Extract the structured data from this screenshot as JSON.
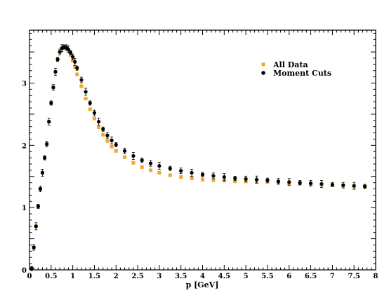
{
  "chart_data": {
    "type": "scatter",
    "xlabel": "p [GeV]",
    "ylabel": "",
    "xlim": [
      0,
      8
    ],
    "ylim": [
      0,
      3.85
    ],
    "xticks": [
      "0",
      "0.5",
      "1",
      "1.5",
      "2",
      "2.5",
      "3",
      "3.5",
      "4",
      "4.5",
      "5",
      "5.5",
      "6",
      "6.5",
      "7",
      "7.5",
      "8"
    ],
    "yticks": [
      "0",
      "1",
      "2",
      "3"
    ],
    "legend_position": "top-right",
    "series": [
      {
        "name": "All Data",
        "color": "#f5a623",
        "marker": "square",
        "x": [
          0.05,
          0.1,
          0.15,
          0.2,
          0.25,
          0.3,
          0.35,
          0.4,
          0.45,
          0.5,
          0.55,
          0.6,
          0.65,
          0.7,
          0.75,
          0.8,
          0.85,
          0.9,
          0.95,
          1.0,
          1.05,
          1.1,
          1.2,
          1.3,
          1.4,
          1.5,
          1.6,
          1.7,
          1.8,
          1.9,
          2.0,
          2.2,
          2.4,
          2.6,
          2.8,
          3.0,
          3.25,
          3.5,
          3.75,
          4.0,
          4.25,
          4.5,
          4.75,
          5.0,
          5.25,
          5.5,
          5.75,
          6.0,
          6.25,
          6.5,
          6.75,
          7.0,
          7.25,
          7.5,
          7.75
        ],
        "y": [
          0.02,
          0.36,
          0.7,
          1.02,
          1.3,
          1.56,
          1.8,
          2.02,
          2.38,
          2.68,
          2.93,
          3.18,
          3.38,
          3.5,
          3.56,
          3.58,
          3.56,
          3.52,
          3.45,
          3.36,
          3.26,
          3.14,
          2.95,
          2.75,
          2.58,
          2.43,
          2.29,
          2.17,
          2.07,
          1.98,
          1.91,
          1.81,
          1.72,
          1.65,
          1.6,
          1.56,
          1.52,
          1.49,
          1.47,
          1.45,
          1.44,
          1.43,
          1.42,
          1.42,
          1.41,
          1.41,
          1.4,
          1.39,
          1.38,
          1.38,
          1.37,
          1.36,
          1.35,
          1.34,
          1.34
        ]
      },
      {
        "name": "Moment Cuts",
        "color": "#000000",
        "marker": "circle",
        "x": [
          0.05,
          0.1,
          0.15,
          0.2,
          0.25,
          0.3,
          0.35,
          0.4,
          0.45,
          0.5,
          0.55,
          0.6,
          0.65,
          0.7,
          0.75,
          0.8,
          0.85,
          0.9,
          0.95,
          1.0,
          1.05,
          1.1,
          1.2,
          1.3,
          1.4,
          1.5,
          1.6,
          1.7,
          1.8,
          1.9,
          2.0,
          2.2,
          2.4,
          2.6,
          2.8,
          3.0,
          3.25,
          3.5,
          3.75,
          4.0,
          4.25,
          4.5,
          4.75,
          5.0,
          5.25,
          5.5,
          5.75,
          6.0,
          6.25,
          6.5,
          6.75,
          7.0,
          7.25,
          7.5,
          7.75
        ],
        "y": [
          0.02,
          0.36,
          0.7,
          1.02,
          1.3,
          1.56,
          1.8,
          2.02,
          2.38,
          2.68,
          2.93,
          3.18,
          3.38,
          3.5,
          3.56,
          3.58,
          3.57,
          3.54,
          3.49,
          3.42,
          3.34,
          3.24,
          3.05,
          2.86,
          2.68,
          2.52,
          2.38,
          2.26,
          2.16,
          2.08,
          2.01,
          1.91,
          1.83,
          1.76,
          1.71,
          1.67,
          1.63,
          1.59,
          1.56,
          1.53,
          1.51,
          1.49,
          1.47,
          1.46,
          1.45,
          1.44,
          1.42,
          1.41,
          1.4,
          1.39,
          1.38,
          1.37,
          1.36,
          1.35,
          1.34
        ]
      }
    ]
  }
}
